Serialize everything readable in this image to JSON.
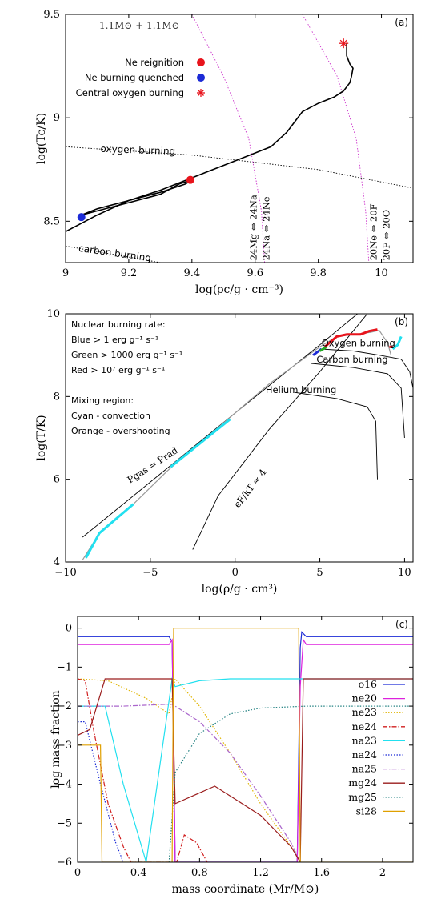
{
  "chart_data": [
    {
      "type": "line",
      "panel_label": "(a)",
      "title_note": "1.1M⊙ + 1.1M⊙",
      "xlabel": "log(ρc/g · cm⁻³)",
      "ylabel": "log(Tc/K)",
      "xlim": [
        9.0,
        10.1
      ],
      "ylim": [
        8.3,
        9.5
      ],
      "xticks": [
        "9",
        "9.2",
        "9.4",
        "9.6",
        "9.8",
        "10"
      ],
      "yticks": [
        "8.5",
        "9",
        "9.5"
      ],
      "xtick_values": [
        9.0,
        9.2,
        9.4,
        9.6,
        9.8,
        10.0
      ],
      "ytick_values": [
        8.5,
        9.0,
        9.5
      ],
      "legend": [
        "Ne reignition",
        "Ne burning quenched",
        "Central oxygen burning"
      ],
      "annotations": [
        "oxygen burning",
        "carbon burning",
        "24Mg ⇔ 24Na",
        "24Na ⇔ 24Ne",
        "20Ne ⇔ 20F",
        "20F ⇔ 20O"
      ],
      "series": [
        {
          "name": "track",
          "color": "#000000",
          "x": [
            9.0,
            9.1,
            9.2,
            9.3,
            9.4,
            9.5,
            9.6,
            9.65,
            9.7,
            9.75,
            9.8,
            9.85,
            9.88,
            9.9,
            9.905,
            9.91,
            9.9,
            9.89,
            9.89
          ],
          "y": [
            8.45,
            8.53,
            8.6,
            8.65,
            8.71,
            8.77,
            8.83,
            8.86,
            8.93,
            9.03,
            9.07,
            9.1,
            9.13,
            9.17,
            9.2,
            9.24,
            9.26,
            9.3,
            9.36
          ]
        },
        {
          "name": "loop",
          "color": "#000000",
          "x": [
            9.05,
            9.2,
            9.3,
            9.36,
            9.4,
            9.38,
            9.3,
            9.2,
            9.1,
            9.05
          ],
          "y": [
            8.53,
            8.59,
            8.63,
            8.68,
            8.7,
            8.68,
            8.64,
            8.6,
            8.56,
            8.53
          ]
        }
      ],
      "curves": [
        {
          "name": "oxygen burning",
          "color": "#000000",
          "style": "dotted",
          "x": [
            9.0,
            9.4,
            9.8,
            10.1
          ],
          "y": [
            8.86,
            8.82,
            8.75,
            8.66
          ]
        },
        {
          "name": "carbon burning",
          "color": "#000000",
          "style": "dotted",
          "x": [
            9.0,
            9.15,
            9.3
          ],
          "y": [
            8.38,
            8.34,
            8.3
          ]
        },
        {
          "name": "24Mg ⇔ 24Na",
          "color": "#cc33cc",
          "style": "dotted",
          "x": [
            9.4,
            9.5,
            9.58,
            9.62,
            9.63
          ],
          "y": [
            9.5,
            9.2,
            8.9,
            8.55,
            8.3
          ]
        },
        {
          "name": "20Ne ⇔ 20F",
          "color": "#cc33cc",
          "style": "dotted",
          "x": [
            9.75,
            9.86,
            9.92,
            9.95,
            9.96
          ],
          "y": [
            9.5,
            9.2,
            8.9,
            8.55,
            8.3
          ]
        }
      ],
      "markers": [
        {
          "name": "Ne reignition",
          "x": 9.395,
          "y": 8.7,
          "color": "#e8141c",
          "shape": "circle"
        },
        {
          "name": "Ne burning quenched",
          "x": 9.05,
          "y": 8.52,
          "color": "#1c2bd6",
          "shape": "circle"
        },
        {
          "name": "Central oxygen burning",
          "x": 9.88,
          "y": 9.36,
          "color": "#e8141c",
          "shape": "star"
        }
      ],
      "colors": {
        "ne_reignition": "#e8141c",
        "ne_quenched": "#1c2bd6",
        "boundary": "#cc33cc"
      }
    },
    {
      "type": "line",
      "panel_label": "(b)",
      "xlabel": "log(ρ/g · cm³)",
      "ylabel": "log(T/K)",
      "xlim": [
        -10,
        10.5
      ],
      "ylim": [
        4,
        10
      ],
      "xticks": [
        "−10",
        "−5",
        "0",
        "5",
        "10"
      ],
      "yticks": [
        "4",
        "6",
        "8",
        "10"
      ],
      "xtick_values": [
        -10,
        -5,
        0,
        5,
        10
      ],
      "ytick_values": [
        4,
        6,
        8,
        10
      ],
      "legend_text": [
        "Nuclear burning rate:",
        "Blue > 1 erg g⁻¹ s⁻¹",
        "Green > 1000 erg g⁻¹ s⁻¹",
        "Red > 10⁷ erg g⁻¹ s⁻¹",
        "Mixing region:",
        "Cyan - convection",
        "Orange - overshooting"
      ],
      "annotations": [
        "Oxygen burning",
        "Carbon burning",
        "Helium burning",
        "Pgas = Prad",
        "ϵF/kT ≈ 4"
      ],
      "series": [
        {
          "name": "profile",
          "color": "#999999",
          "x": [
            -9,
            -8,
            -6,
            -4,
            -2,
            0,
            2,
            4,
            5,
            6,
            7,
            8,
            8.5,
            9,
            9.2
          ],
          "y": [
            4.05,
            4.7,
            5.4,
            6.2,
            6.9,
            7.6,
            8.3,
            8.9,
            9.2,
            9.45,
            9.5,
            9.55,
            9.6,
            9.3,
            9.0
          ]
        }
      ],
      "curves": [
        {
          "name": "Pgas = Prad",
          "color": "#000000",
          "x": [
            -9,
            0,
            5,
            9
          ],
          "y": [
            4.6,
            7.6,
            9.25,
            10.6
          ]
        },
        {
          "name": "ϵF/kT ≈ 4",
          "color": "#000000",
          "x": [
            -2.5,
            -1,
            2,
            5,
            8
          ],
          "y": [
            4.3,
            5.6,
            7.2,
            8.6,
            10.1
          ]
        },
        {
          "name": "Oxygen burning",
          "color": "#000000",
          "x": [
            5,
            7,
            8.5,
            9.8,
            10.3,
            10.5
          ],
          "y": [
            9.15,
            9.1,
            9.0,
            8.9,
            8.6,
            8.2
          ]
        },
        {
          "name": "Carbon burning",
          "color": "#000000",
          "x": [
            4.5,
            7,
            9,
            9.8,
            10
          ],
          "y": [
            8.8,
            8.7,
            8.55,
            8.2,
            7.0
          ]
        },
        {
          "name": "Helium burning",
          "color": "#000000",
          "x": [
            3.5,
            6,
            7.8,
            8.3,
            8.4
          ],
          "y": [
            8.1,
            7.95,
            7.75,
            7.4,
            6.0
          ]
        }
      ],
      "highlight_segments": [
        {
          "name": "convection",
          "color": "#22e0ef",
          "x": [
            -8.8,
            -8.0,
            -6.0
          ],
          "y": [
            4.1,
            4.7,
            5.4
          ]
        },
        {
          "name": "convection",
          "color": "#22e0ef",
          "x": [
            -3.8,
            -0.3
          ],
          "y": [
            6.3,
            7.45
          ]
        },
        {
          "name": "convection",
          "color": "#22e0ef",
          "x": [
            9.3,
            9.6,
            9.8
          ],
          "y": [
            9.15,
            9.25,
            9.45
          ]
        },
        {
          "name": "blue burning",
          "color": "#1c2bd6",
          "x": [
            4.6,
            5.1
          ],
          "y": [
            9.0,
            9.15
          ]
        },
        {
          "name": "green burning",
          "color": "#22aa22",
          "x": [
            5.0,
            5.4
          ],
          "y": [
            9.1,
            9.2
          ]
        },
        {
          "name": "red burning",
          "color": "#e8141c",
          "x": [
            5.3,
            6,
            6.6,
            7.4,
            7.9,
            8.4
          ],
          "y": [
            9.2,
            9.45,
            9.5,
            9.5,
            9.58,
            9.62
          ]
        },
        {
          "name": "red burning",
          "color": "#e8141c",
          "x": [
            9.1,
            9.3
          ],
          "y": [
            9.2,
            9.2
          ]
        }
      ],
      "colors": {
        "blue": "#1c2bd6",
        "green": "#22aa22",
        "red": "#e8141c",
        "cyan": "#22e0ef",
        "orange": "#ff8c00"
      }
    },
    {
      "type": "line",
      "panel_label": "(c)",
      "xlabel": "mass coordinate (Mr/M⊙)",
      "ylabel": "log mass fraction",
      "xlim": [
        0,
        2.2
      ],
      "ylim": [
        -6,
        0.3
      ],
      "xticks": [
        "0",
        "0.4",
        "0.8",
        "1.2",
        "1.6",
        "2"
      ],
      "yticks": [
        "0",
        "−1",
        "−2",
        "−3",
        "−4",
        "−5",
        "−6"
      ],
      "xtick_values": [
        0,
        0.4,
        0.8,
        1.2,
        1.6,
        2.0
      ],
      "ytick_values": [
        0,
        -1,
        -2,
        -3,
        -4,
        -5,
        -6
      ],
      "series": [
        {
          "name": "o16",
          "color": "#1c2bd6",
          "style": "solid",
          "x": [
            0,
            0.6,
            0.62,
            0.64,
            1.44,
            1.46,
            1.47,
            1.5,
            2.2
          ],
          "y": [
            -0.22,
            -0.22,
            -0.35,
            -6.0,
            -6.0,
            -0.5,
            -0.1,
            -0.22,
            -0.22
          ]
        },
        {
          "name": "ne20",
          "color": "#dd22dd",
          "style": "solid",
          "x": [
            0,
            0.6,
            0.62,
            0.64,
            1.44,
            1.46,
            1.48,
            1.5,
            2.2
          ],
          "y": [
            -0.42,
            -0.42,
            -0.3,
            -6.0,
            -6.0,
            -1.5,
            -0.3,
            -0.42,
            -0.42
          ]
        },
        {
          "name": "ne23",
          "color": "#e0b400",
          "style": "dotted",
          "x": [
            0,
            0.2,
            0.45,
            0.6,
            0.64,
            0.8,
            1.0,
            1.2,
            1.4,
            1.46
          ],
          "y": [
            -1.3,
            -1.35,
            -1.8,
            -2.2,
            -1.3,
            -2.0,
            -3.2,
            -4.5,
            -5.6,
            -6.0
          ]
        },
        {
          "name": "ne24",
          "color": "#d01e1e",
          "style": "dashdot",
          "x": [
            0,
            0.05,
            0.1,
            0.2,
            0.3,
            0.35,
            0.65,
            0.7,
            0.78,
            0.85
          ],
          "y": [
            -1.3,
            -1.35,
            -2.5,
            -4.5,
            -5.6,
            -6.0,
            -6.0,
            -5.3,
            -5.5,
            -6.0
          ]
        },
        {
          "name": "na23",
          "color": "#22e0ef",
          "style": "solid",
          "x": [
            0,
            0.18,
            0.3,
            0.45,
            0.62,
            0.64,
            0.8,
            1.0,
            1.3,
            1.46,
            1.48,
            2.2
          ],
          "y": [
            -2.0,
            -2.0,
            -4.0,
            -6.0,
            -1.3,
            -1.5,
            -1.35,
            -1.3,
            -1.3,
            -1.3,
            -1.3,
            -1.3
          ]
        },
        {
          "name": "na24",
          "color": "#1c2bd6",
          "style": "dotted",
          "x": [
            0,
            0.05,
            0.15,
            0.25,
            0.3
          ],
          "y": [
            -2.4,
            -2.4,
            -4.0,
            -5.5,
            -6.0
          ]
        },
        {
          "name": "na25",
          "color": "#aa66cc",
          "style": "dashdot",
          "x": [
            0,
            0.3,
            0.62,
            0.8,
            1.0,
            1.2,
            1.4,
            1.46
          ],
          "y": [
            -2.0,
            -2.0,
            -1.95,
            -2.4,
            -3.2,
            -4.3,
            -5.5,
            -6.0
          ]
        },
        {
          "name": "mg24",
          "color": "#9a1c1c",
          "style": "solid",
          "x": [
            0,
            0.08,
            0.18,
            0.62,
            0.64,
            0.9,
            1.2,
            1.4,
            1.46,
            1.48,
            2.2
          ],
          "y": [
            -2.75,
            -2.6,
            -1.3,
            -1.3,
            -4.5,
            -4.05,
            -4.8,
            -5.6,
            -6.0,
            -1.3,
            -1.3
          ]
        },
        {
          "name": "mg25",
          "color": "#208080",
          "style": "dotted",
          "x": [
            0.6,
            0.64,
            0.8,
            1.0,
            1.2,
            1.5,
            2.2
          ],
          "y": [
            -6.0,
            -3.7,
            -2.7,
            -2.2,
            -2.05,
            -2.0,
            -2.0
          ]
        },
        {
          "name": "si28",
          "color": "#e0a000",
          "style": "solid",
          "x": [
            0,
            0.15,
            0.16,
            0.62,
            0.63,
            1.45,
            1.46,
            2.2
          ],
          "y": [
            -3.0,
            -3.0,
            -6.0,
            -6.0,
            0.0,
            0.0,
            -6.0,
            -6.0
          ]
        }
      ]
    }
  ]
}
